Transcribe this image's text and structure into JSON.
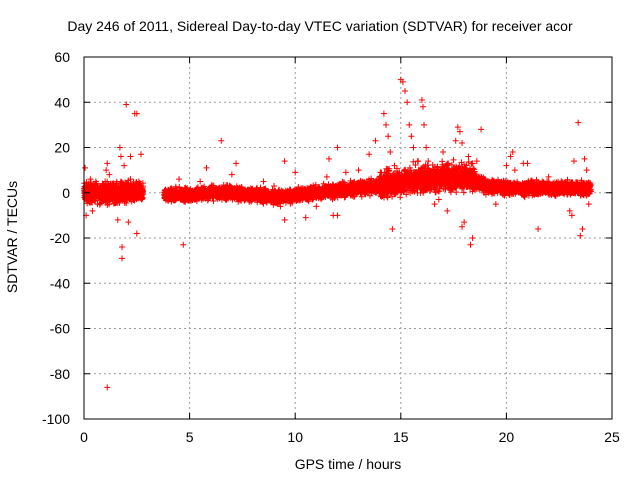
{
  "chart_data": {
    "type": "scatter",
    "title": "Day 246 of 2011, Sidereal Day-to-day VTEC variation (SDTVAR) for receiver acor",
    "xlabel": "GPS time / hours",
    "ylabel": "SDTVAR / TECUs",
    "xlim": [
      0,
      25
    ],
    "ylim": [
      -100,
      60
    ],
    "xticks": [
      0,
      5,
      10,
      15,
      20,
      25
    ],
    "yticks": [
      -100,
      -80,
      -60,
      -40,
      -20,
      0,
      20,
      40,
      60
    ],
    "grid": true,
    "marker": "+",
    "series": [
      {
        "name": "SDTVAR",
        "color": "#ff0000",
        "trend": {
          "x": [
            0,
            1,
            2,
            3,
            4,
            5,
            6,
            7,
            8,
            9,
            10,
            11,
            12,
            13,
            14,
            15,
            16,
            17,
            18,
            19,
            20,
            21,
            22,
            23,
            24
          ],
          "y": [
            0,
            0,
            0,
            0,
            -1,
            -1,
            0,
            0,
            -1,
            -2,
            -1,
            0,
            1,
            2,
            3,
            5,
            6,
            7,
            7,
            3,
            2,
            2,
            2,
            2,
            2
          ]
        },
        "segments": [
          [
            0,
            2.8
          ],
          [
            3.8,
            24.0
          ]
        ],
        "noise_segments": [
          {
            "x": [
              0,
              2.8
            ],
            "amp": 3
          },
          {
            "x": [
              3.8,
              9.5
            ],
            "amp": 2
          },
          {
            "x": [
              9.5,
              14.0
            ],
            "amp": 2
          },
          {
            "x": [
              14.0,
              18.5
            ],
            "amp": 4
          },
          {
            "x": [
              18.5,
              24.0
            ],
            "amp": 2
          }
        ],
        "outliers": [
          [
            0.05,
            11
          ],
          [
            0.1,
            -10
          ],
          [
            0.3,
            6
          ],
          [
            0.4,
            -8
          ],
          [
            1.0,
            5
          ],
          [
            1.05,
            10
          ],
          [
            1.1,
            -86
          ],
          [
            1.1,
            13
          ],
          [
            1.2,
            8
          ],
          [
            1.6,
            -12
          ],
          [
            1.7,
            20
          ],
          [
            1.75,
            16
          ],
          [
            1.8,
            -24
          ],
          [
            1.8,
            -29
          ],
          [
            1.9,
            12
          ],
          [
            2.0,
            39
          ],
          [
            2.1,
            -13
          ],
          [
            2.2,
            16
          ],
          [
            2.2,
            6
          ],
          [
            2.4,
            35
          ],
          [
            2.5,
            35
          ],
          [
            2.5,
            -18
          ],
          [
            2.6,
            5
          ],
          [
            2.7,
            17
          ],
          [
            4.7,
            -23
          ],
          [
            4.5,
            6
          ],
          [
            5.5,
            5
          ],
          [
            5.8,
            11
          ],
          [
            6.5,
            23
          ],
          [
            7.0,
            8
          ],
          [
            7.2,
            13
          ],
          [
            8.5,
            5
          ],
          [
            9.0,
            3
          ],
          [
            9.3,
            -6
          ],
          [
            9.5,
            -12
          ],
          [
            9.5,
            14
          ],
          [
            10.0,
            9
          ],
          [
            10.5,
            -11
          ],
          [
            11.0,
            -6
          ],
          [
            11.5,
            7
          ],
          [
            11.6,
            15
          ],
          [
            11.8,
            -10
          ],
          [
            12.0,
            -10
          ],
          [
            12.0,
            20
          ],
          [
            12.4,
            9
          ],
          [
            13.0,
            10
          ],
          [
            13.5,
            17
          ],
          [
            13.8,
            23
          ],
          [
            14.0,
            7
          ],
          [
            14.2,
            35
          ],
          [
            14.3,
            30
          ],
          [
            14.4,
            25
          ],
          [
            14.5,
            18
          ],
          [
            14.6,
            -16
          ],
          [
            14.7,
            12
          ],
          [
            15.0,
            50
          ],
          [
            15.1,
            49
          ],
          [
            15.2,
            45
          ],
          [
            15.3,
            40
          ],
          [
            15.4,
            30
          ],
          [
            15.5,
            25
          ],
          [
            15.6,
            20
          ],
          [
            15.8,
            14
          ],
          [
            16.0,
            41
          ],
          [
            16.05,
            38
          ],
          [
            16.1,
            30
          ],
          [
            16.2,
            20
          ],
          [
            16.3,
            14
          ],
          [
            16.6,
            -5
          ],
          [
            16.8,
            -3
          ],
          [
            17.0,
            18
          ],
          [
            17.2,
            -8
          ],
          [
            17.6,
            23
          ],
          [
            17.7,
            29
          ],
          [
            17.8,
            27
          ],
          [
            17.9,
            22
          ],
          [
            17.9,
            -15
          ],
          [
            18.0,
            -13
          ],
          [
            18.2,
            16
          ],
          [
            18.3,
            -23
          ],
          [
            18.4,
            -20
          ],
          [
            18.4,
            13
          ],
          [
            18.6,
            14
          ],
          [
            18.8,
            28
          ],
          [
            19.0,
            4
          ],
          [
            19.5,
            -5
          ],
          [
            20.0,
            12
          ],
          [
            20.2,
            16
          ],
          [
            20.3,
            18
          ],
          [
            20.4,
            10
          ],
          [
            20.8,
            13
          ],
          [
            21.0,
            13
          ],
          [
            21.2,
            4
          ],
          [
            21.5,
            -16
          ],
          [
            21.7,
            5
          ],
          [
            22.0,
            7
          ],
          [
            22.5,
            4
          ],
          [
            22.8,
            3
          ],
          [
            23.0,
            -8
          ],
          [
            23.1,
            -10
          ],
          [
            23.2,
            14
          ],
          [
            23.4,
            31
          ],
          [
            23.5,
            -19
          ],
          [
            23.6,
            -16
          ],
          [
            23.7,
            15
          ],
          [
            23.8,
            10
          ],
          [
            23.9,
            -5
          ]
        ]
      }
    ]
  }
}
